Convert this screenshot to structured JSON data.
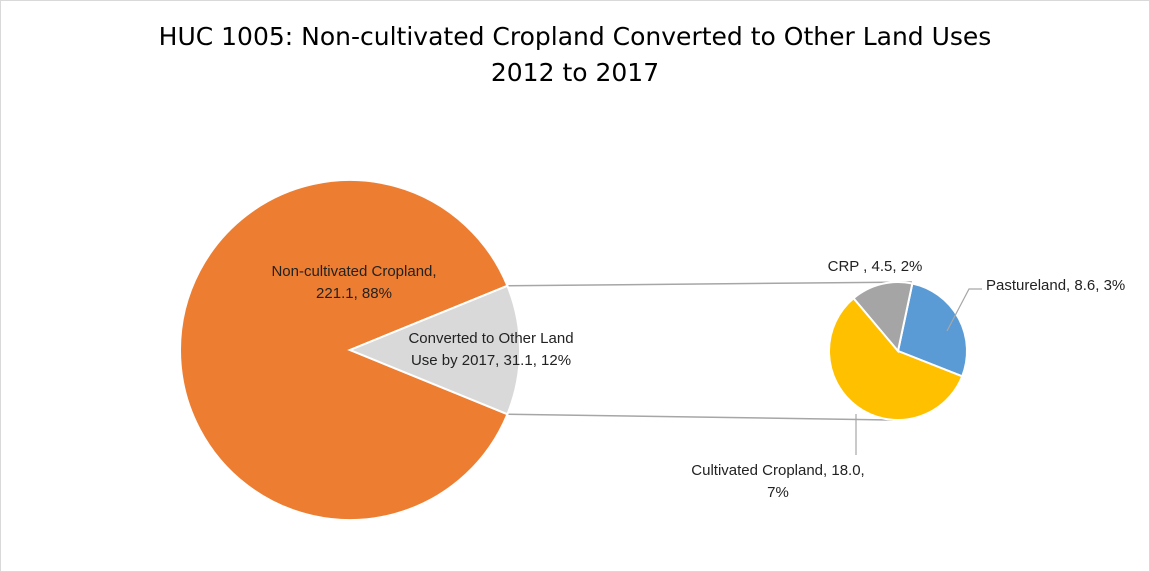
{
  "chart_data": {
    "type": "pie",
    "subtype": "pie-of-pie",
    "title_line1": "HUC 1005: Non-cultivated Cropland Converted to Other Land Uses",
    "title_line2": "2012 to 2017",
    "main_pie": [
      {
        "name": "Non-cultivated Cropland",
        "value": 221.1,
        "percent": 88,
        "color": "#ED7D31",
        "label_lines": [
          "Non-cultivated Cropland,",
          "221.1, 88%"
        ]
      },
      {
        "name": "Converted to Other Land Use by 2017",
        "value": 31.1,
        "percent": 12,
        "color": "#D9D9D9",
        "label_lines": [
          "Converted to Other Land",
          "Use by 2017, 31.1, 12%"
        ]
      }
    ],
    "secondary_pie": [
      {
        "name": "Pastureland",
        "value": 8.6,
        "percent": 3,
        "color": "#5B9BD5",
        "label_lines": [
          "Pastureland, 8.6, 3%"
        ]
      },
      {
        "name": "Cultivated Cropland",
        "value": 18.0,
        "percent": 7,
        "color": "#FFC000",
        "label_lines": [
          "Cultivated Cropland, 18.0,",
          "7%"
        ]
      },
      {
        "name": "CRP",
        "value": 4.5,
        "percent": 2,
        "color": "#A5A5A5",
        "label_lines": [
          "CRP , 4.5, 2%"
        ]
      }
    ]
  }
}
